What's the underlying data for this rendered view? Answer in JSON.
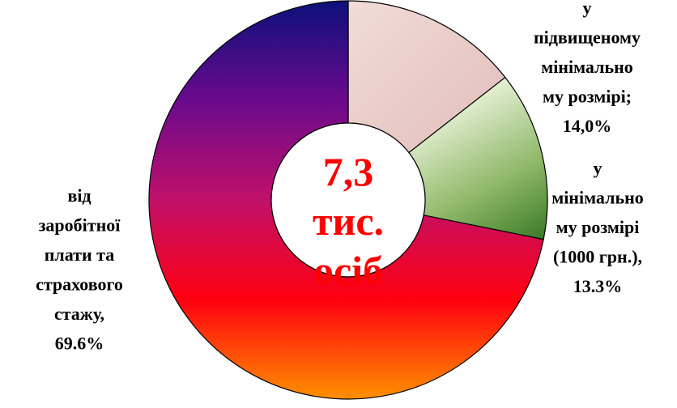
{
  "chart_data": {
    "type": "donut",
    "categories": [
      [
        "у",
        "підвищеному",
        "мінімально",
        "му розмірі;"
      ],
      [
        "у",
        "мінімально",
        "му розмірі",
        "(1000 грн.),"
      ],
      [
        "від",
        "заробітної",
        "плати та",
        "страхового",
        "стажу,"
      ]
    ],
    "values": [
      14.0,
      13.3,
      69.6
    ],
    "value_labels": [
      "14,0%",
      "13.3%",
      "69.6%"
    ],
    "colors": [
      [
        "#f2dcd8",
        "#dcb4b0"
      ],
      [
        "#eef6e0",
        "#8fb868",
        "#1a6410"
      ],
      [
        "#0c107a",
        "#6a0a8c",
        "#c0106a",
        "#ff0010",
        "#ff9000"
      ]
    ],
    "center_label": [
      "7,3",
      "тис.",
      "осіб"
    ]
  }
}
